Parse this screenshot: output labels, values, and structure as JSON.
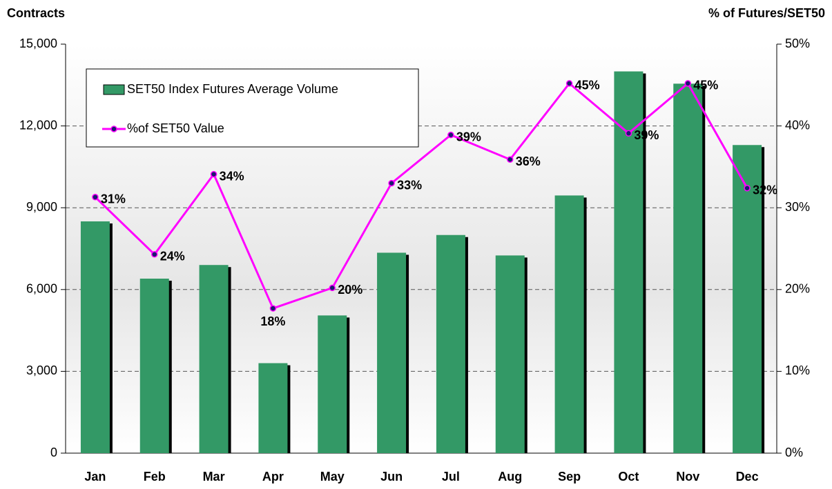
{
  "chart_data": {
    "type": "bar-line",
    "y_label": "Contracts",
    "y2_label": "% of Futures/SET50",
    "categories": [
      "Jan",
      "Feb",
      "Mar",
      "Apr",
      "May",
      "Jun",
      "Jul",
      "Aug",
      "Sep",
      "Oct",
      "Nov",
      "Dec"
    ],
    "series": [
      {
        "name": "SET50 Index Futures Average Volume",
        "type": "bar",
        "color": "#339966",
        "values": [
          8500,
          6400,
          6900,
          3300,
          5050,
          7350,
          8000,
          7250,
          9450,
          14000,
          13550,
          11300
        ]
      },
      {
        "name": "%of SET50 Value",
        "type": "line",
        "axis": "y2",
        "color": "#ff00ff",
        "marker_color": "#1a1a6e",
        "values": [
          31.3,
          24.3,
          34.1,
          17.7,
          20.2,
          33.0,
          38.9,
          35.9,
          45.2,
          39.1,
          45.2,
          32.4
        ],
        "value_labels": [
          "31%",
          "24%",
          "34%",
          "18%",
          "20%",
          "33%",
          "39%",
          "36%",
          "45%",
          "39%",
          "45%",
          "32%"
        ]
      }
    ],
    "ylim": [
      0,
      15000
    ],
    "yticks": [
      0,
      {
        "value": 3000,
        "label": "3,000"
      },
      {
        "value": 6000,
        "label": "6,000"
      },
      {
        "value": 9000,
        "label": "9,000"
      },
      {
        "value": 12000,
        "label": "12,000"
      },
      {
        "value": 15000,
        "label": "15,000"
      }
    ],
    "y2lim": [
      0,
      50
    ],
    "y2ticks": [
      {
        "value": 0,
        "label": "0%"
      },
      {
        "value": 10,
        "label": "10%"
      },
      {
        "value": 20,
        "label": "20%"
      },
      {
        "value": 30,
        "label": "30%"
      },
      {
        "value": 40,
        "label": "40%"
      },
      {
        "value": 50,
        "label": "50%"
      }
    ],
    "grid": true
  }
}
